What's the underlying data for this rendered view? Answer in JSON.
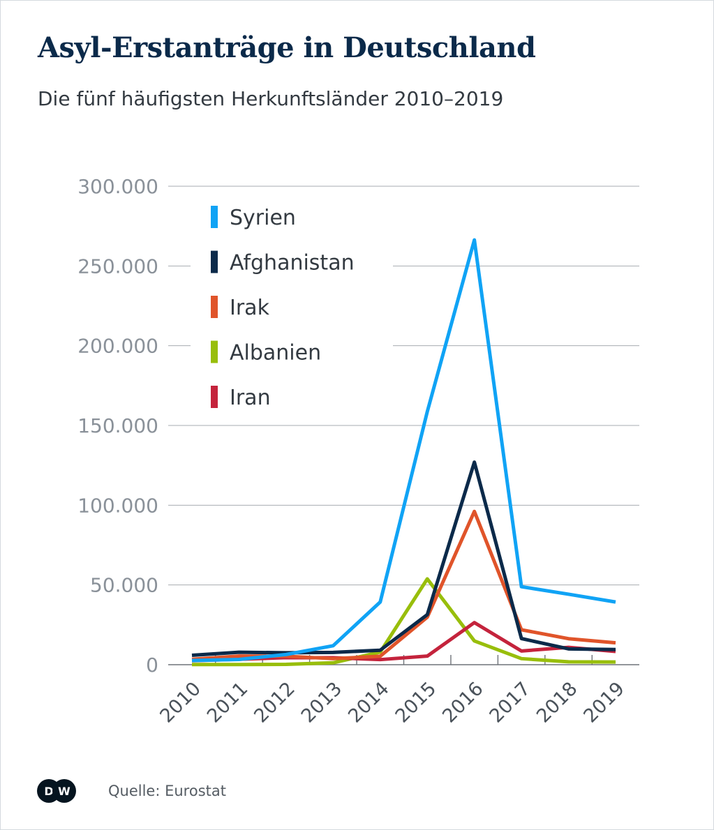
{
  "title": "Asyl-Erstanträge in Deutschland",
  "subtitle": "Die fünf häufigsten Herkunftsländer 2010–2019",
  "source": "Quelle: Eurostat",
  "logo": "DW",
  "chart_data": {
    "type": "line",
    "title": "Asyl-Erstanträge in Deutschland",
    "subtitle": "Die fünf häufigsten Herkunftsländer 2010–2019",
    "xlabel": "",
    "ylabel": "",
    "x": [
      "2010",
      "2011",
      "2012",
      "2013",
      "2014",
      "2015",
      "2016",
      "2017",
      "2018",
      "2019"
    ],
    "ylim": [
      0,
      300000
    ],
    "yticks": [
      0,
      50000,
      100000,
      150000,
      200000,
      250000,
      300000
    ],
    "ytick_labels": [
      "0",
      "50.000",
      "100.000",
      "150.000",
      "200.000",
      "250.000",
      "300.000"
    ],
    "grid": true,
    "legend_position": "top-left",
    "series": [
      {
        "name": "Syrien",
        "color": "#10a3f5",
        "values": [
          2600,
          3300,
          6400,
          11900,
          39300,
          158700,
          266300,
          48900,
          44200,
          39300
        ]
      },
      {
        "name": "Afghanistan",
        "color": "#0b2a4a",
        "values": [
          5900,
          7800,
          7500,
          7700,
          9100,
          31400,
          127000,
          16400,
          9900,
          9500
        ]
      },
      {
        "name": "Irak",
        "color": "#e0542a",
        "values": [
          3400,
          5400,
          5300,
          3800,
          5300,
          29800,
          96100,
          21900,
          16300,
          13700
        ]
      },
      {
        "name": "Albanien",
        "color": "#98be0b",
        "values": [
          100,
          100,
          200,
          1200,
          7900,
          53800,
          14900,
          3800,
          1800,
          1700
        ]
      },
      {
        "name": "Iran",
        "color": "#c4233c",
        "values": [
          2500,
          3400,
          4400,
          4400,
          3200,
          5400,
          26400,
          8600,
          10900,
          8300
        ]
      }
    ]
  }
}
